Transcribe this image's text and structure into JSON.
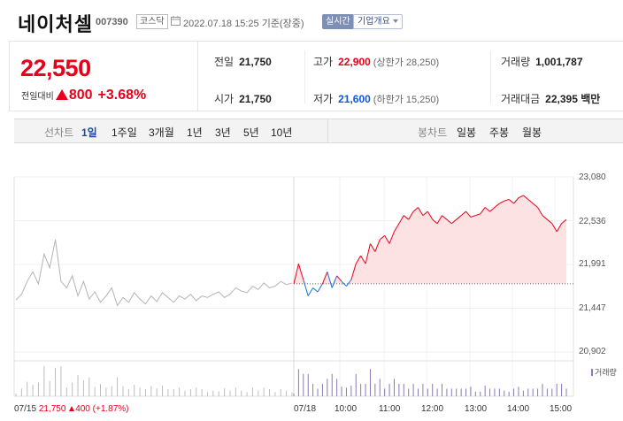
{
  "header": {
    "name": "네이처셀",
    "code": "007390",
    "market": "코스닥",
    "datetime": "2022.07.18 15:25 기준(장중)",
    "realtime_label": "실시간",
    "corp_info_label": "기업개요"
  },
  "price_box": {
    "price": "22,550",
    "change_label": "전일대비",
    "change": "800",
    "change_pct": "+3.68%"
  },
  "info": {
    "prev_close": {
      "label": "전일",
      "value": "21,750"
    },
    "high": {
      "label": "고가",
      "value": "22,900",
      "sub": "(상한가 28,250)"
    },
    "volume": {
      "label": "거래량",
      "value": "1,001,787"
    },
    "open": {
      "label": "시가",
      "value": "21,750"
    },
    "low": {
      "label": "저가",
      "value": "21,600",
      "sub": "(하한가 15,250)"
    },
    "amount": {
      "label": "거래대금",
      "value": "22,395 백만"
    }
  },
  "tabs": {
    "line_title": "선차트",
    "line_tabs": [
      "1일",
      "1주일",
      "3개월",
      "1년",
      "3년",
      "5년",
      "10년"
    ],
    "line_active": "1일",
    "candle_title": "봉차트",
    "candle_tabs": [
      "일봉",
      "주봉",
      "월봉"
    ]
  },
  "chart_data": {
    "type": "line",
    "y_ticks": [
      "23,080",
      "22,536",
      "21,991",
      "21,447",
      "20,902"
    ],
    "ylim": [
      20902,
      23080
    ],
    "x_ticks": [
      "07/15",
      "07/18",
      "10:00",
      "11:00",
      "12:00",
      "13:00",
      "14:00",
      "15:00"
    ],
    "reference_price": 21750,
    "prev_day_label": "21,750",
    "prev_day_change": "400",
    "prev_day_change_pct": "(+1.87%)",
    "volume_legend": "거래량",
    "colors": {
      "up": "#e8001a",
      "down": "#1a6fd8",
      "prev": "#b4b4b4",
      "fill": "#fde2e4",
      "volume": "#8a78b7"
    },
    "series_prev_day": [
      21550,
      21620,
      21780,
      21900,
      21750,
      22120,
      21950,
      22300,
      21780,
      21700,
      21850,
      21600,
      21780,
      21560,
      21650,
      21520,
      21600,
      21700,
      21480,
      21580,
      21520,
      21640,
      21560,
      21500,
      21600,
      21530,
      21640,
      21580,
      21520,
      21600,
      21560,
      21620,
      21540,
      21600,
      21580,
      21620,
      21650,
      21580,
      21620,
      21700,
      21660,
      21640,
      21720,
      21680,
      21760,
      21700,
      21720,
      21780,
      21740,
      21760
    ],
    "series_today": [
      21750,
      22000,
      21800,
      21600,
      21700,
      21650,
      21750,
      21900,
      21700,
      21850,
      21780,
      21720,
      21800,
      22000,
      22100,
      22000,
      22250,
      22150,
      22300,
      22350,
      22250,
      22400,
      22500,
      22600,
      22550,
      22650,
      22700,
      22600,
      22650,
      22550,
      22500,
      22600,
      22550,
      22500,
      22550,
      22600,
      22650,
      22580,
      22600,
      22620,
      22700,
      22650,
      22700,
      22750,
      22780,
      22800,
      22750,
      22820,
      22850,
      22800,
      22750,
      22700,
      22600,
      22550,
      22500,
      22400,
      22500,
      22550
    ]
  }
}
